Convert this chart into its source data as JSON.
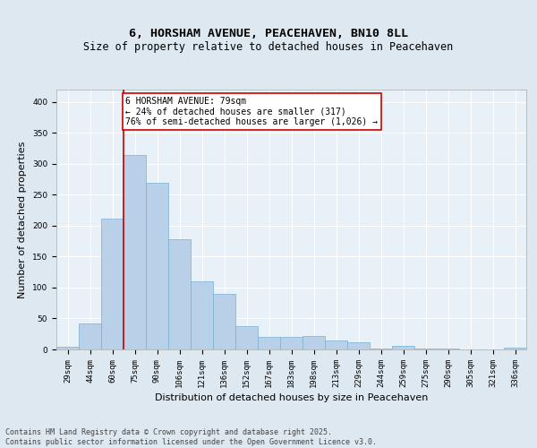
{
  "title_line1": "6, HORSHAM AVENUE, PEACEHAVEN, BN10 8LL",
  "title_line2": "Size of property relative to detached houses in Peacehaven",
  "xlabel": "Distribution of detached houses by size in Peacehaven",
  "ylabel": "Number of detached properties",
  "categories": [
    "29sqm",
    "44sqm",
    "60sqm",
    "75sqm",
    "90sqm",
    "106sqm",
    "121sqm",
    "136sqm",
    "152sqm",
    "167sqm",
    "183sqm",
    "198sqm",
    "213sqm",
    "229sqm",
    "244sqm",
    "259sqm",
    "275sqm",
    "290sqm",
    "305sqm",
    "321sqm",
    "336sqm"
  ],
  "values": [
    4,
    42,
    212,
    315,
    270,
    178,
    110,
    90,
    38,
    20,
    20,
    22,
    14,
    12,
    2,
    6,
    2,
    1,
    0,
    0,
    3
  ],
  "bar_color": "#b8d0e8",
  "bar_edge_color": "#7aafd4",
  "vline_x_index": 3,
  "vline_color": "#cc0000",
  "annotation_text": "6 HORSHAM AVENUE: 79sqm\n← 24% of detached houses are smaller (317)\n76% of semi-detached houses are larger (1,026) →",
  "annotation_box_color": "#ffffff",
  "annotation_box_edge_color": "#cc0000",
  "ylim": [
    0,
    420
  ],
  "yticks": [
    0,
    50,
    100,
    150,
    200,
    250,
    300,
    350,
    400
  ],
  "background_color": "#dde8f0",
  "plot_background_color": "#e8f0f8",
  "grid_color": "#ffffff",
  "footer_text": "Contains HM Land Registry data © Crown copyright and database right 2025.\nContains public sector information licensed under the Open Government Licence v3.0.",
  "title_fontsize": 9.5,
  "subtitle_fontsize": 8.5,
  "axis_label_fontsize": 8,
  "tick_fontsize": 6.5,
  "annotation_fontsize": 7,
  "footer_fontsize": 6
}
